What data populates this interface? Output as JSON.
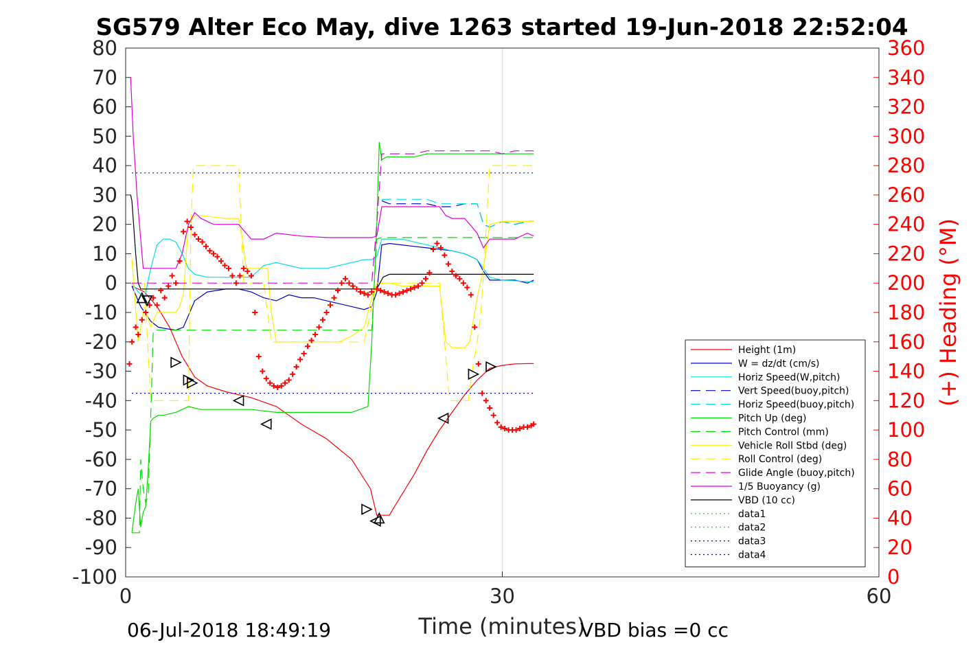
{
  "footer": {
    "timestamp": "06-Jul-2018 18:49:19",
    "vbd_bias": "VBD bias =0 cc"
  },
  "chart_data": {
    "type": "line",
    "title": "SG579 Alter Eco May, dive 1263 started 19-Jun-2018 22:52:04",
    "xlabel": "Time (minutes)",
    "ylabel_left": "",
    "ylabel_right": "(+) Heading (°M)",
    "xlim": [
      0,
      60
    ],
    "ylim": [
      -100,
      80
    ],
    "ylim_right": [
      0,
      360
    ],
    "xticks": [
      0,
      30,
      60
    ],
    "yticks": [
      -100,
      -90,
      -80,
      -70,
      -60,
      -50,
      -40,
      -30,
      -20,
      -10,
      0,
      10,
      20,
      30,
      40,
      50,
      60,
      70,
      80
    ],
    "yticks_right": [
      0,
      20,
      40,
      60,
      80,
      100,
      120,
      140,
      160,
      180,
      200,
      220,
      240,
      260,
      280,
      300,
      320,
      340,
      360
    ],
    "grid": "x-only",
    "legend_position": "lower-right",
    "series": [
      {
        "name": "Height (1m)",
        "color": "#ff0000",
        "style": "solid",
        "x": [
          0.5,
          1.5,
          2.5,
          3.5,
          4.5,
          5.5,
          6.5,
          8,
          10,
          12,
          14,
          16,
          18,
          19.5,
          20,
          21,
          22,
          23,
          24,
          25,
          26,
          27,
          28,
          29,
          30,
          31,
          32,
          32.5
        ],
        "y": [
          -1,
          -3,
          -8,
          -15,
          -25,
          -32,
          -35,
          -37,
          -39,
          -42,
          -48,
          -53,
          -60,
          -70,
          -79,
          -79,
          -72,
          -65,
          -57,
          -50,
          -44,
          -38,
          -33,
          -29,
          -28,
          -27.5,
          -27.4,
          -27.4
        ]
      },
      {
        "name": "W = dz/dt (cm/s)",
        "color": "#0000cc",
        "style": "solid",
        "x": [
          0.5,
          1.2,
          2,
          2.6,
          3.2,
          4,
          4.6,
          5.5,
          6.5,
          8,
          9,
          10,
          11,
          12,
          13,
          14,
          15,
          16,
          17,
          18,
          19,
          19.6,
          20,
          20.4,
          21,
          22,
          23,
          24,
          25,
          26,
          27,
          28,
          28.5,
          29,
          30,
          31,
          32,
          32.5
        ],
        "y": [
          -1,
          -8,
          -13,
          -15,
          -15.5,
          -16,
          -15,
          -6,
          -3,
          -2,
          -2,
          -3,
          -5,
          -6,
          -4,
          -5,
          -5,
          -6,
          -7,
          -8,
          -9,
          -8,
          -3,
          13,
          13.5,
          13,
          12.5,
          12,
          11.5,
          11,
          10,
          8,
          4,
          1,
          1,
          1,
          0,
          1
        ]
      },
      {
        "name": "Horiz Speed(W,pitch)",
        "color": "#00e0e0",
        "style": "solid",
        "x": [
          0.5,
          1,
          1.5,
          2,
          2.5,
          3,
          3.5,
          4,
          4.5,
          5,
          5.5,
          6.5,
          8,
          9,
          10,
          11,
          12,
          13,
          14,
          15,
          16,
          17,
          18,
          19,
          19.6,
          20,
          20.4,
          21,
          22,
          23,
          24,
          25,
          26,
          27,
          28,
          28.5,
          29,
          30,
          31,
          32,
          32.5
        ],
        "y": [
          0,
          -3,
          -5,
          5,
          13,
          15,
          15,
          14,
          10,
          5,
          3,
          2,
          2,
          2,
          2,
          6,
          7,
          6,
          5,
          5,
          5,
          6,
          7,
          8,
          8,
          9,
          15,
          15,
          15,
          14,
          13,
          12,
          11,
          10,
          8,
          5,
          2,
          1,
          0.8,
          0.5,
          0.5
        ]
      },
      {
        "name": "Vert Speed(buoy,pitch)",
        "color": "#0000cc",
        "style": "dash",
        "x": [
          20.4,
          21,
          22,
          23,
          24,
          25,
          26,
          27,
          28,
          28.5,
          29,
          30,
          31,
          32,
          32.5
        ],
        "y": [
          28,
          27,
          27,
          27,
          27,
          26,
          26,
          27,
          27,
          20,
          19,
          21,
          20,
          21,
          21
        ]
      },
      {
        "name": "Horiz Speed(buoy,pitch)",
        "color": "#00e0e0",
        "style": "dash",
        "x": [
          20.4,
          21,
          22,
          23,
          24,
          25,
          26,
          27,
          28,
          28.5,
          29,
          30,
          31,
          32,
          32.5
        ],
        "y": [
          28.5,
          28.5,
          28.5,
          28.5,
          28.5,
          27,
          27,
          27,
          27,
          20,
          19,
          21,
          20,
          21,
          21
        ]
      },
      {
        "name": "Pitch Up (deg)",
        "color": "#00dd00",
        "style": "solid",
        "x": [
          0.5,
          0.8,
          1,
          1.2,
          1.4,
          1.6,
          1.8,
          2,
          2.2,
          2.6,
          3,
          4,
          5,
          6,
          8,
          10,
          12,
          14,
          16,
          18,
          19.3,
          19.6,
          20,
          20.2,
          20.4,
          20.8,
          21,
          22,
          23,
          24,
          25,
          26,
          27,
          28,
          29,
          30,
          31,
          32,
          32.5
        ],
        "y": [
          -85,
          -75,
          -70,
          -83,
          -78,
          -76,
          -63,
          -47,
          -46,
          -45,
          -45,
          -44,
          -42,
          -43,
          -43,
          -43,
          -44,
          -44,
          -44,
          -44,
          -42,
          -20,
          20,
          48,
          42,
          43,
          43,
          43,
          43,
          44,
          44,
          44,
          44,
          44,
          44,
          44,
          44,
          44,
          44
        ]
      },
      {
        "name": "Pitch Control (mm)",
        "color": "#00dd00",
        "style": "dash",
        "x": [
          0.5,
          1.1,
          1.2,
          1.4,
          1.6,
          1.8,
          2,
          2.2,
          2.6,
          3,
          3.5,
          4,
          4.5,
          5,
          6,
          8,
          10,
          12,
          14,
          16,
          18,
          19.6,
          20,
          20.4,
          22,
          24,
          26,
          28,
          29,
          30,
          31,
          32,
          32.5
        ],
        "y": [
          -85,
          -85,
          -60,
          -70,
          -75,
          -72,
          -45,
          -16,
          -16,
          -16,
          -16,
          -16,
          -16,
          -16,
          -16,
          -16,
          -16,
          -16,
          -16,
          -16,
          -16,
          -16,
          15,
          15.5,
          15.5,
          15.5,
          15.5,
          15.5,
          15.5,
          15.5,
          15.5,
          15.5,
          15.5
        ]
      },
      {
        "name": "Vehicle Roll Stbd (deg)",
        "color": "#ffee00",
        "style": "solid",
        "x": [
          0.5,
          1,
          1.5,
          2,
          2.5,
          3,
          3.5,
          4,
          4.3,
          4.6,
          5,
          5.5,
          6,
          8,
          9,
          9.3,
          9.6,
          10,
          11,
          11.3,
          11.6,
          12,
          13,
          14,
          15,
          16,
          17,
          18,
          19,
          19.6,
          20,
          21,
          22,
          23,
          24,
          25,
          25.5,
          26,
          27,
          27.4,
          27.8,
          28,
          28.5,
          29,
          30,
          31,
          32,
          32.5
        ],
        "y": [
          8,
          -20,
          -8,
          -15,
          -10,
          -10,
          -10,
          -10,
          -8,
          -4,
          20,
          23,
          23,
          22,
          22,
          15,
          5,
          5,
          5,
          5,
          -10,
          -20,
          -20,
          -20,
          -20,
          -20,
          -20,
          -18,
          -15,
          -5,
          0,
          0,
          -1,
          -1,
          -1,
          -1,
          -20,
          -22,
          -22,
          -20,
          -10,
          -5,
          5,
          20,
          21,
          21,
          21,
          21
        ]
      },
      {
        "name": "Roll Control (deg)",
        "color": "#ffee00",
        "style": "dash",
        "x": [
          1.5,
          2,
          2.3,
          2.6,
          3,
          3.5,
          4,
          4.5,
          5,
          5.2,
          5.4,
          6,
          8,
          9,
          9.2,
          9.4,
          11,
          11.3,
          11.6,
          12,
          14,
          16,
          18,
          19,
          19.5,
          20,
          22,
          24,
          25,
          25.4,
          25.8,
          26,
          27,
          27.3,
          27.6,
          28,
          28.3,
          28.6,
          29,
          30,
          31,
          32,
          32.5
        ],
        "y": [
          0,
          -40,
          -40,
          -40,
          -40,
          -40,
          -40,
          -40,
          -40,
          20,
          40,
          40,
          40,
          40,
          20,
          0,
          0,
          -10,
          -20,
          -20,
          -20,
          -20,
          -20,
          -20,
          -10,
          0,
          0,
          0,
          0,
          -20,
          -40,
          -40,
          -40,
          -40,
          -30,
          -20,
          -10,
          10,
          40,
          40,
          40,
          40,
          40
        ]
      },
      {
        "name": "Glide Angle (buoy,pitch)",
        "color": "#dd00dd",
        "style": "dash",
        "x": [
          0.5,
          1,
          2,
          4,
          6,
          8,
          10,
          12,
          14,
          16,
          18,
          19.6,
          20,
          20.4,
          21,
          22,
          23,
          24,
          25,
          26,
          27,
          28,
          29,
          30,
          31,
          32,
          32.5
        ],
        "y": [
          0,
          0,
          0,
          0,
          0,
          0,
          0,
          0,
          0,
          0,
          0,
          0,
          20,
          44,
          44,
          44,
          44,
          45,
          45,
          45,
          45,
          45,
          45,
          44,
          45,
          45,
          45
        ]
      },
      {
        "name": "1/5 Buoyancy (g)",
        "color": "#dd00dd",
        "style": "solid",
        "x": [
          0.4,
          0.6,
          0.9,
          1.2,
          1.4,
          1.8,
          2.2,
          3,
          4,
          4.5,
          5,
          5.5,
          6,
          7,
          8,
          9,
          10,
          11,
          12,
          14,
          16,
          18,
          19.6,
          20,
          20.4,
          21,
          22,
          23,
          24,
          25,
          25.5,
          26,
          27,
          28,
          28.5,
          29,
          30,
          31,
          32,
          32.5
        ],
        "y": [
          70,
          50,
          30,
          15,
          5,
          5,
          5,
          5,
          5,
          10,
          20,
          24,
          22,
          20,
          20,
          20,
          15,
          15,
          17,
          16,
          15.5,
          15.5,
          15.5,
          16,
          26,
          26,
          26,
          26,
          26,
          26,
          23,
          22,
          22,
          17,
          12,
          15,
          15,
          15,
          17,
          16
        ]
      },
      {
        "name": "VBD (10 cc)",
        "color": "#000000",
        "style": "solid",
        "x": [
          0.4,
          0.5,
          0.8,
          1,
          1.2,
          1.5,
          2,
          3,
          5,
          10,
          15,
          20,
          20.5,
          21,
          22,
          25,
          28,
          29,
          30,
          31,
          32,
          32.5
        ],
        "y": [
          30,
          28,
          10,
          0,
          -2,
          -2,
          -2,
          -2,
          -2,
          -2,
          -2,
          -2,
          2,
          3,
          3,
          3,
          3,
          3,
          3,
          3,
          3,
          3
        ]
      },
      {
        "name": "data1",
        "color": "#00dd00",
        "style": "dot",
        "x": [],
        "y": []
      },
      {
        "name": "data2",
        "color": "#00dd00",
        "style": "dot",
        "x": [],
        "y": []
      },
      {
        "name": "data3",
        "color": "#0000cc",
        "style": "dot",
        "x": [
          0.5,
          32.5
        ],
        "y": [
          37.5,
          37.5
        ]
      },
      {
        "name": "data4",
        "color": "#0000cc",
        "style": "dot",
        "x": [
          0.5,
          32.5
        ],
        "y": [
          -37.5,
          -37.5
        ]
      }
    ],
    "heading_points": {
      "axis": "right",
      "color": "#ff0000",
      "marker": "+",
      "x": [
        0.3,
        0.5,
        0.8,
        1,
        1.3,
        1.6,
        1.9,
        2.2,
        2.5,
        2.8,
        3.1,
        3.4,
        3.7,
        4,
        4.3,
        4.6,
        4.9,
        5.2,
        5.5,
        5.8,
        6.1,
        6.4,
        6.7,
        7,
        7.3,
        7.6,
        7.9,
        8.2,
        8.5,
        8.8,
        9.1,
        9.4,
        9.7,
        10,
        10.3,
        10.6,
        10.9,
        11.2,
        11.5,
        11.8,
        12.1,
        12.4,
        12.7,
        13,
        13.3,
        13.6,
        13.9,
        14.2,
        14.5,
        14.8,
        15.1,
        15.4,
        15.7,
        16,
        16.3,
        16.6,
        16.9,
        17.2,
        17.5,
        17.8,
        18.1,
        18.4,
        18.7,
        19,
        19.3,
        19.6,
        20,
        20.3,
        20.6,
        20.9,
        21.2,
        21.5,
        21.8,
        22.1,
        22.4,
        22.7,
        23,
        23.3,
        23.6,
        23.9,
        24.2,
        24.5,
        24.8,
        25.1,
        25.4,
        25.7,
        26,
        26.3,
        26.6,
        26.9,
        27.2,
        27.5,
        27.8,
        28.1,
        28.4,
        28.7,
        29,
        29.3,
        29.6,
        29.9,
        30.2,
        30.5,
        30.8,
        31.1,
        31.4,
        31.7,
        32,
        32.3,
        32.5
      ],
      "y": [
        145,
        160,
        170,
        165,
        175,
        180,
        185,
        190,
        185,
        195,
        190,
        198,
        205,
        200,
        215,
        235,
        242,
        238,
        233,
        230,
        228,
        225,
        222,
        220,
        218,
        215,
        212,
        210,
        205,
        200,
        205,
        210,
        208,
        205,
        180,
        150,
        140,
        135,
        132,
        130,
        129,
        130,
        132,
        134,
        138,
        143,
        148,
        152,
        157,
        161,
        165,
        170,
        175,
        180,
        185,
        190,
        195,
        200,
        203,
        200,
        198,
        196,
        194,
        193,
        192,
        194,
        196,
        195,
        194,
        193,
        192,
        192,
        193,
        194,
        195,
        196,
        197,
        198,
        200,
        203,
        207,
        223,
        227,
        224,
        219,
        213,
        208,
        205,
        203,
        200,
        197,
        192,
        170,
        145,
        125,
        120,
        115,
        110,
        105,
        102,
        101,
        100,
        100,
        100,
        101,
        102,
        102,
        103,
        104
      ]
    },
    "markers_right": {
      "label": "",
      "triangles": [
        {
          "x": 1.3,
          "y": -5,
          "dir": "up"
        },
        {
          "x": 1.7,
          "y": -6,
          "dir": "down"
        },
        {
          "x": 4.0,
          "y": -27,
          "dir": "right"
        },
        {
          "x": 5.0,
          "y": -33,
          "dir": "right"
        },
        {
          "x": 5.3,
          "y": -34,
          "dir": "right"
        },
        {
          "x": 9.0,
          "y": -40,
          "dir": "left"
        },
        {
          "x": 11.2,
          "y": -48,
          "dir": "left"
        },
        {
          "x": 19.2,
          "y": -77,
          "dir": "right"
        },
        {
          "x": 19.9,
          "y": -81,
          "dir": "left"
        },
        {
          "x": 20.2,
          "y": -80,
          "dir": "up"
        },
        {
          "x": 25.3,
          "y": -46,
          "dir": "left"
        },
        {
          "x": 27.7,
          "y": -31,
          "dir": "right"
        },
        {
          "x": 29.1,
          "y": -28.5,
          "dir": "right"
        }
      ]
    }
  }
}
